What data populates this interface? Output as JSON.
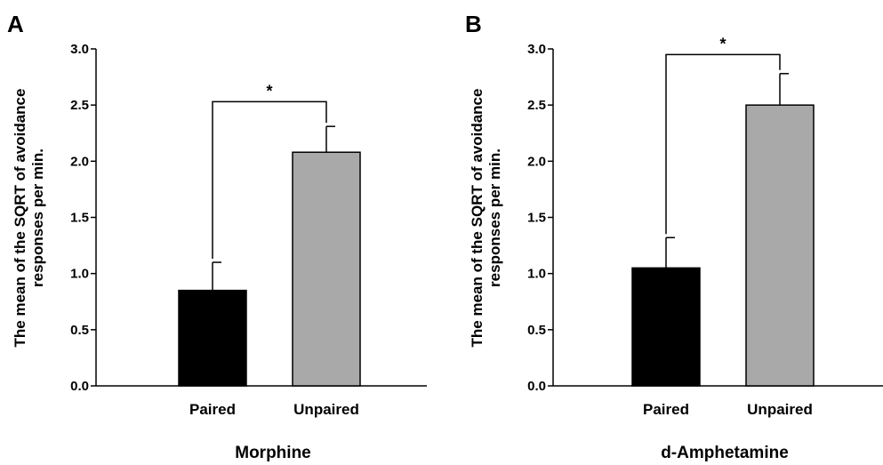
{
  "chart_data": [
    {
      "panel": "A",
      "type": "bar",
      "categories": [
        "Paired",
        "Unpaired"
      ],
      "values": [
        0.85,
        2.08
      ],
      "errors": [
        0.25,
        0.23
      ],
      "colors": [
        "#000000",
        "#a9a9a9"
      ],
      "xlabel": "Morphine",
      "ylabel": [
        "The mean of the SQRT of avoidance",
        "responses per min."
      ],
      "ylim": [
        0,
        3.0
      ],
      "yticks": [
        "0.0",
        "0.5",
        "1.0",
        "1.5",
        "2.0",
        "2.5",
        "3.0"
      ],
      "significance": {
        "label": "*",
        "bracket_y": 2.53
      }
    },
    {
      "panel": "B",
      "type": "bar",
      "categories": [
        "Paired",
        "Unpaired"
      ],
      "values": [
        1.05,
        2.5
      ],
      "errors": [
        0.27,
        0.28
      ],
      "colors": [
        "#000000",
        "#a9a9a9"
      ],
      "xlabel": "d-Amphetamine",
      "ylabel": [
        "The mean of the SQRT of avoidance",
        "responses per min."
      ],
      "ylim": [
        0,
        3.0
      ],
      "yticks": [
        "0.0",
        "0.5",
        "1.0",
        "1.5",
        "2.0",
        "2.5",
        "3.0"
      ],
      "significance": {
        "label": "*",
        "bracket_y": 2.95
      }
    }
  ]
}
